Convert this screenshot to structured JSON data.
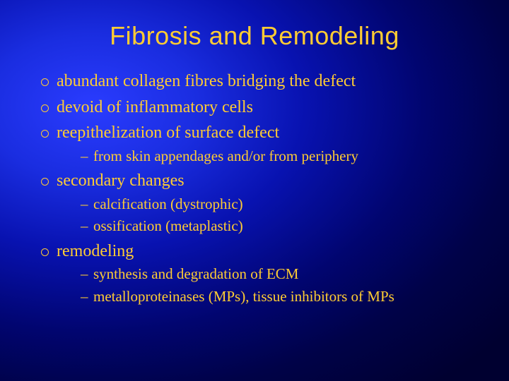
{
  "slide": {
    "title": "Fibrosis and Remodeling",
    "title_fontsize": 36,
    "title_color": "#ffcc33",
    "body_color": "#ffcc33",
    "lvl1_fontsize": 24,
    "lvl2_fontsize": 21,
    "background_gradient": {
      "type": "radial",
      "center_color": "#2a3cff",
      "edge_color": "#000030"
    },
    "bullets": [
      {
        "text": "abundant collagen fibres bridging the defect",
        "sub": []
      },
      {
        "text": "devoid of inflammatory cells",
        "sub": []
      },
      {
        "text": "reepithelization of surface defect",
        "sub": [
          "from skin appendages and/or from periphery"
        ]
      },
      {
        "text": "secondary changes",
        "sub": [
          "calcification (dystrophic)",
          "ossification (metaplastic)"
        ]
      },
      {
        "text": "remodeling",
        "sub": [
          "synthesis and degradation of ECM",
          "metalloproteinases (MPs), tissue inhibitors of MPs"
        ]
      }
    ]
  }
}
